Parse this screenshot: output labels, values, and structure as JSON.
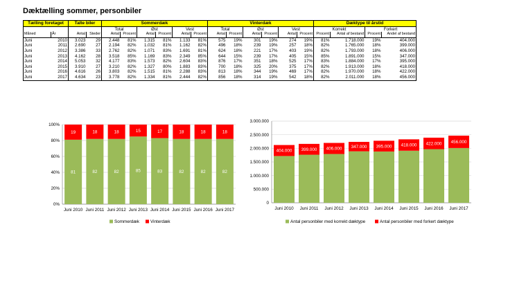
{
  "title": "Dæktælling sommer, personbiler",
  "table": {
    "group_headers": [
      "Tælling foretaget",
      "Talte biler",
      "Sommerdæk",
      "Vinterdæk",
      "Dæktype til årstid"
    ],
    "sub_headers": [
      "Total",
      "Øst",
      "Vest",
      "Total",
      "Øst",
      "Vest",
      "Korrekt",
      "Forkert"
    ],
    "col_headers": [
      "Måned",
      "År",
      "Antal",
      "Steder",
      "Antal",
      "Procent",
      "Antal",
      "Procent",
      "Antal",
      "Procent",
      "Antal",
      "Procent",
      "Antal",
      "Procent",
      "Antal",
      "Procent",
      "Procent",
      "Antal af bestand",
      "Procent",
      "Andel af bestand"
    ],
    "rows": [
      [
        "Juni",
        "2010",
        "3.023",
        "29",
        "2.448",
        "81%",
        "1.315",
        "81%",
        "1.133",
        "81%",
        "575",
        "19%",
        "301",
        "19%",
        "274",
        "19%",
        "81%",
        "1.718.000",
        "19%",
        "404.000"
      ],
      [
        "Juni",
        "2011",
        "2.690",
        "27",
        "2.194",
        "82%",
        "1.032",
        "81%",
        "1.162",
        "82%",
        "496",
        "18%",
        "239",
        "19%",
        "257",
        "18%",
        "82%",
        "1.765.000",
        "18%",
        "399.000"
      ],
      [
        "Juni",
        "2012",
        "3.386",
        "33",
        "2.762",
        "82%",
        "1.071",
        "83%",
        "1.691",
        "81%",
        "624",
        "18%",
        "221",
        "17%",
        "403",
        "19%",
        "82%",
        "1.793.000",
        "18%",
        "406.000"
      ],
      [
        "Juni",
        "2013",
        "4.162",
        "28",
        "3.518",
        "85%",
        "1.169",
        "83%",
        "2.349",
        "85%",
        "644",
        "15%",
        "239",
        "17%",
        "405",
        "15%",
        "85%",
        "1.891.000",
        "15%",
        "347.000"
      ],
      [
        "Juni",
        "2014",
        "5.053",
        "32",
        "4.177",
        "83%",
        "1.573",
        "82%",
        "2.604",
        "83%",
        "876",
        "17%",
        "351",
        "18%",
        "525",
        "17%",
        "83%",
        "1.884.000",
        "17%",
        "395.000"
      ],
      [
        "Juni",
        "2015",
        "3.910",
        "27",
        "3.210",
        "82%",
        "1.327",
        "80%",
        "1.883",
        "83%",
        "700",
        "18%",
        "325",
        "20%",
        "375",
        "17%",
        "82%",
        "1.913.000",
        "18%",
        "418.000"
      ],
      [
        "Juni",
        "2016",
        "4.616",
        "26",
        "3.803",
        "82%",
        "1.515",
        "81%",
        "2.288",
        "83%",
        "813",
        "18%",
        "344",
        "19%",
        "469",
        "17%",
        "82%",
        "1.970.000",
        "18%",
        "422.000"
      ],
      [
        "Juni",
        "2017",
        "4.634",
        "23",
        "3.778",
        "82%",
        "1.334",
        "81%",
        "2.444",
        "82%",
        "856",
        "18%",
        "314",
        "19%",
        "542",
        "18%",
        "82%",
        "2.011.000",
        "18%",
        "456.000"
      ]
    ]
  },
  "colors": {
    "green": "#9bbb59",
    "red": "#ff0000",
    "header": "#ffff00",
    "grid": "#d9d9d9"
  },
  "chart_data": [
    {
      "type": "bar",
      "stacked": true,
      "categories": [
        "Juni 2010",
        "Juni 2011",
        "Juni 2012",
        "Juni 2013",
        "Juni 2014",
        "Juni 2015",
        "Juni 2016",
        "Juni 2017"
      ],
      "series": [
        {
          "name": "Sommerdæk",
          "values": [
            81,
            82,
            82,
            85,
            83,
            82,
            82,
            82
          ]
        },
        {
          "name": "Vinterdæk",
          "values": [
            19,
            18,
            18,
            15,
            17,
            18,
            18,
            18
          ]
        }
      ],
      "y_ticks": [
        "0%",
        "20%",
        "40%",
        "60%",
        "80%",
        "100%"
      ],
      "ylim": [
        0,
        100
      ],
      "legend": "bottom",
      "grid": true
    },
    {
      "type": "bar",
      "stacked": true,
      "categories": [
        "Juni 2010",
        "Juni 2011",
        "Juni 2012",
        "Juni 2013",
        "Juni 2014",
        "Juni 2015",
        "Juni 2016",
        "Juni 2017"
      ],
      "series": [
        {
          "name": "Antal personbiler med korrekt dæktype",
          "values": [
            1718000,
            1765000,
            1793000,
            1891000,
            1884000,
            1913000,
            1970000,
            2011000
          ]
        },
        {
          "name": "Antal personbiler med forkert dæktype",
          "values": [
            404000,
            399000,
            406000,
            347000,
            395000,
            418000,
            422000,
            456000
          ],
          "labels": [
            "404.000",
            "399.000",
            "406.000",
            "347.000",
            "395.000",
            "418.000",
            "422.000",
            "456.000"
          ]
        }
      ],
      "y_ticks": [
        "0",
        "500.000",
        "1.000.000",
        "1.500.000",
        "2.000.000",
        "2.500.000",
        "3.000.000"
      ],
      "ylim": [
        0,
        3000000
      ],
      "legend": "bottom",
      "grid": true
    }
  ]
}
